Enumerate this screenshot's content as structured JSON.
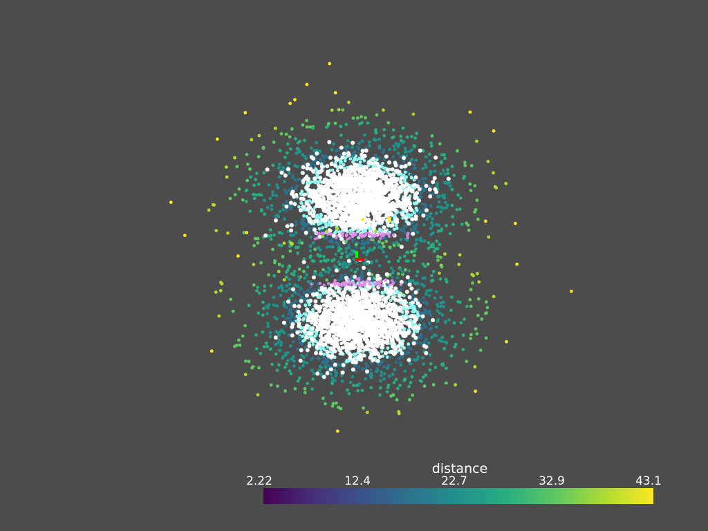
{
  "chart_data": {
    "type": "scatter",
    "background_color": "#4c4c4c",
    "colormap": "viridis",
    "colorbar": {
      "title": "distance",
      "range": [
        2.22,
        43.1
      ],
      "tick_labels": [
        "2.22",
        "12.4",
        "22.7",
        "32.9",
        "43.1"
      ],
      "orientation": "horizontal",
      "placement": "bottom"
    },
    "clusters": [
      {
        "name": "upper",
        "center_x": 0,
        "center_y": 4.5,
        "core": "white"
      },
      {
        "name": "lower",
        "center_x": 0,
        "center_y": -4.5,
        "core": "white"
      }
    ],
    "axes_widget": {
      "x_color": "#ff0000",
      "y_color": "#00ff00"
    }
  }
}
